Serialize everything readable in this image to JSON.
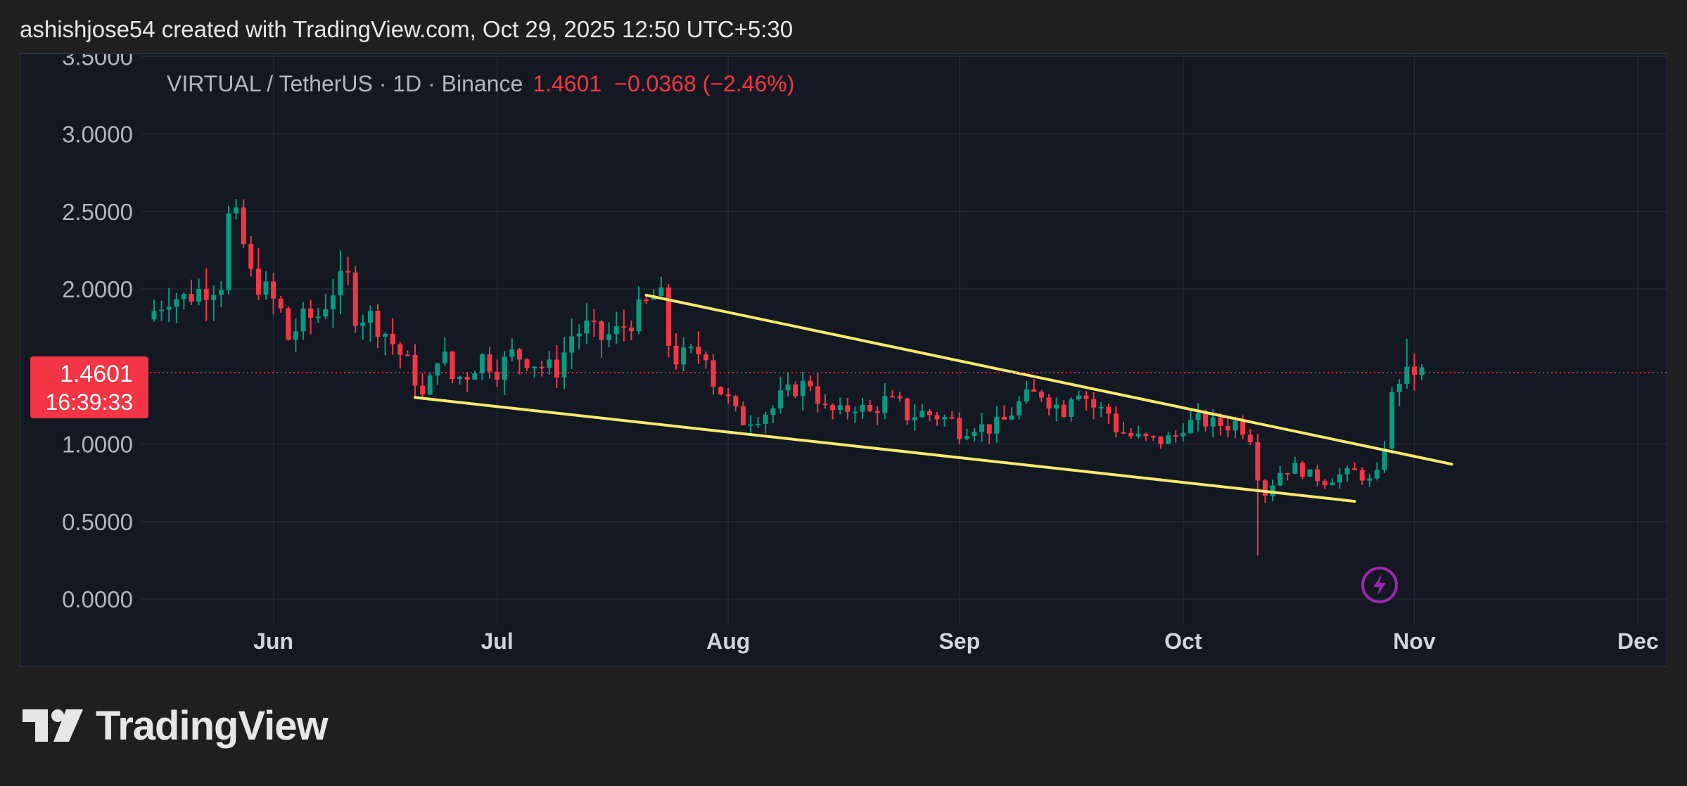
{
  "header": {
    "caption": "ashishjose54 created with TradingView.com, Oct 29, 2025 12:50 UTC+5:30"
  },
  "legend": {
    "symbol": "VIRTUAL / TetherUS · 1D · Binance",
    "last": "1.4601",
    "change": "−0.0368 (−2.46%)"
  },
  "price_tag": {
    "price": "1.4601",
    "countdown": "16:39:33"
  },
  "brand": {
    "name": "TradingView"
  },
  "colors": {
    "background": "#141823",
    "grid": "#232732",
    "up": "#089981",
    "down": "#f23645",
    "trendline": "#f7e96b",
    "alert": "#9c27b0"
  },
  "icons": {
    "alert": "lightning-icon",
    "logo": "tradingview-logo-icon"
  },
  "chart_data": {
    "type": "candlestick",
    "symbol": "VIRTUAL / TetherUS",
    "interval": "1D",
    "exchange": "Binance",
    "y_ticks": [
      "3.5000",
      "3.0000",
      "2.5000",
      "2.0000",
      "1.0000",
      "0.5000",
      "0.0000"
    ],
    "x_ticks": [
      {
        "label": "Jun",
        "day": 16
      },
      {
        "label": "Jul",
        "day": 46
      },
      {
        "label": "Aug",
        "day": 77
      },
      {
        "label": "Sep",
        "day": 108
      },
      {
        "label": "Oct",
        "day": 138
      },
      {
        "label": "Nov",
        "day": 169
      },
      {
        "label": "Dec",
        "day": 199
      }
    ],
    "ylim": [
      0,
      3.5
    ],
    "xlim_days": [
      -1,
      204
    ],
    "last_price": 1.4601,
    "grid": true,
    "series_points": [
      [
        0,
        1.86
      ],
      [
        2,
        1.96
      ],
      [
        4,
        1.94
      ],
      [
        6,
        1.99
      ],
      [
        9,
        2.05
      ],
      [
        10,
        2.45
      ],
      [
        11,
        2.42
      ],
      [
        12,
        2.28
      ],
      [
        13,
        2.08
      ],
      [
        14,
        2.04
      ],
      [
        16,
        1.92
      ],
      [
        17,
        1.85
      ],
      [
        18,
        1.68
      ],
      [
        20,
        1.8
      ],
      [
        22,
        1.83
      ],
      [
        24,
        2.0
      ],
      [
        26,
        2.06
      ],
      [
        27,
        1.84
      ],
      [
        29,
        1.82
      ],
      [
        31,
        1.72
      ],
      [
        33,
        1.58
      ],
      [
        34,
        1.52
      ],
      [
        35,
        1.42
      ],
      [
        36,
        1.3
      ],
      [
        37,
        1.4
      ],
      [
        38,
        1.58
      ],
      [
        39,
        1.55
      ],
      [
        40,
        1.42
      ],
      [
        42,
        1.45
      ],
      [
        44,
        1.56
      ],
      [
        46,
        1.48
      ],
      [
        48,
        1.58
      ],
      [
        50,
        1.55
      ],
      [
        52,
        1.5
      ],
      [
        54,
        1.48
      ],
      [
        56,
        1.7
      ],
      [
        58,
        1.75
      ],
      [
        60,
        1.68
      ],
      [
        62,
        1.72
      ],
      [
        64,
        1.8
      ],
      [
        66,
        1.9
      ],
      [
        67,
        1.95
      ],
      [
        68,
        1.93
      ],
      [
        69,
        1.65
      ],
      [
        70,
        1.55
      ],
      [
        72,
        1.58
      ],
      [
        74,
        1.6
      ],
      [
        75,
        1.4
      ],
      [
        77,
        1.28
      ],
      [
        78,
        1.2
      ],
      [
        79,
        1.15
      ],
      [
        81,
        1.18
      ],
      [
        83,
        1.23
      ],
      [
        84,
        1.3
      ],
      [
        86,
        1.36
      ],
      [
        88,
        1.4
      ],
      [
        89,
        1.3
      ],
      [
        90,
        1.22
      ],
      [
        92,
        1.2
      ],
      [
        94,
        1.25
      ],
      [
        96,
        1.2
      ],
      [
        98,
        1.28
      ],
      [
        100,
        1.25
      ],
      [
        101,
        1.18
      ],
      [
        103,
        1.2
      ],
      [
        105,
        1.18
      ],
      [
        107,
        1.15
      ],
      [
        108,
        1.08
      ],
      [
        110,
        1.12
      ],
      [
        112,
        1.1
      ],
      [
        114,
        1.15
      ],
      [
        116,
        1.26
      ],
      [
        117,
        1.3
      ],
      [
        119,
        1.33
      ],
      [
        120,
        1.28
      ],
      [
        122,
        1.22
      ],
      [
        123,
        1.33
      ],
      [
        124,
        1.36
      ],
      [
        126,
        1.24
      ],
      [
        128,
        1.2
      ],
      [
        129,
        1.1
      ],
      [
        131,
        1.05
      ],
      [
        133,
        1.03
      ],
      [
        135,
        1.02
      ],
      [
        137,
        1.05
      ],
      [
        138,
        1.12
      ],
      [
        140,
        1.15
      ],
      [
        142,
        1.13
      ],
      [
        144,
        1.12
      ],
      [
        145,
        1.14
      ],
      [
        146,
        1.1
      ],
      [
        147,
        1.05
      ],
      [
        148,
        0.8
      ],
      [
        149,
        0.68
      ],
      [
        150,
        0.75
      ],
      [
        151,
        0.82
      ],
      [
        153,
        0.85
      ],
      [
        155,
        0.8
      ],
      [
        157,
        0.76
      ],
      [
        159,
        0.8
      ],
      [
        161,
        0.82
      ],
      [
        163,
        0.76
      ],
      [
        164,
        0.8
      ],
      [
        165,
        1.0
      ],
      [
        166,
        1.3
      ],
      [
        167,
        1.42
      ],
      [
        168,
        1.44
      ],
      [
        169,
        1.47
      ],
      [
        170,
        1.46
      ]
    ],
    "trendlines": [
      {
        "name": "upper",
        "start": {
          "day": 66,
          "price": 1.96
        },
        "end": {
          "day": 174,
          "price": 0.87
        }
      },
      {
        "name": "lower",
        "start": {
          "day": 35,
          "price": 1.3
        },
        "end": {
          "day": 161,
          "price": 0.63
        }
      }
    ],
    "spikes": [
      {
        "day": 11,
        "high": 2.58
      },
      {
        "day": 148,
        "low": 0.28
      },
      {
        "day": 168,
        "high": 1.68
      }
    ]
  }
}
